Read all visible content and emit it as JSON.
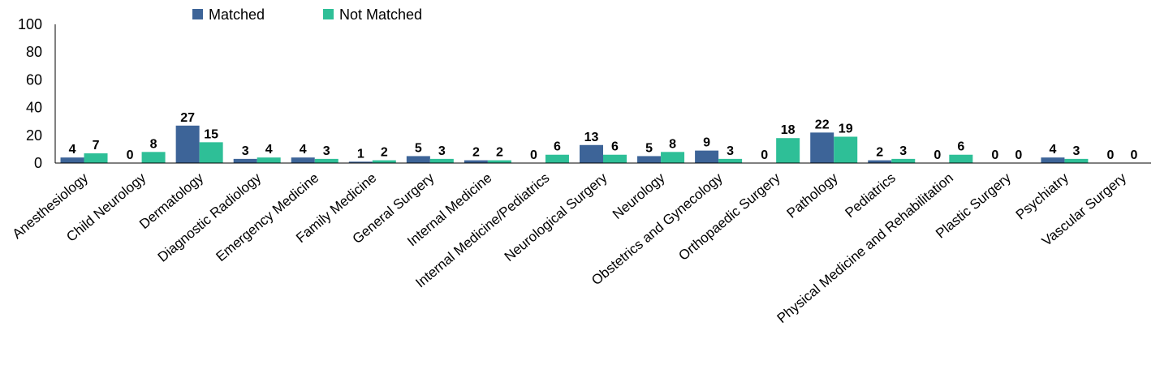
{
  "chart_data": {
    "type": "bar",
    "categories": [
      "Anesthesiology",
      "Child Neurology",
      "Dermatology",
      "Diagnostic Radiology",
      "Emergency Medicine",
      "Family Medicine",
      "General Surgery",
      "Internal Medicine",
      "Internal Medicine/Pediatrics",
      "Neurological Surgery",
      "Neurology",
      "Obstetrics and Gynecology",
      "Orthopaedic Surgery",
      "Pathology",
      "Pediatrics",
      "Physical Medicine and Rehabilitation",
      "Plastic Surgery",
      "Psychiatry",
      "Vascular Surgery"
    ],
    "series": [
      {
        "name": "Matched",
        "color": "#3d6498",
        "values": [
          4,
          0,
          27,
          3,
          4,
          1,
          5,
          2,
          0,
          13,
          5,
          9,
          0,
          22,
          2,
          0,
          0,
          4,
          0
        ]
      },
      {
        "name": "Not Matched",
        "color": "#2ebf97",
        "values": [
          7,
          8,
          15,
          4,
          3,
          2,
          3,
          2,
          6,
          6,
          8,
          3,
          18,
          19,
          3,
          6,
          0,
          3,
          0
        ]
      }
    ],
    "ylim": [
      0,
      100
    ],
    "yticks": [
      0,
      20,
      40,
      60,
      80,
      100
    ],
    "title": "",
    "xlabel": "",
    "ylabel": "",
    "legend_position": "top-left",
    "grid": false,
    "data_labels": true
  }
}
